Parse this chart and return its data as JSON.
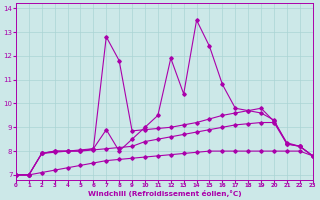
{
  "xlabel": "Windchill (Refroidissement éolien,°C)",
  "background_color": "#cce8e8",
  "line_color": "#aa00aa",
  "xlim": [
    0,
    23
  ],
  "ylim": [
    6.8,
    14.2
  ],
  "xticks": [
    0,
    1,
    2,
    3,
    4,
    5,
    6,
    7,
    8,
    9,
    10,
    11,
    12,
    13,
    14,
    15,
    16,
    17,
    18,
    19,
    20,
    21,
    22,
    23
  ],
  "yticks": [
    7,
    8,
    9,
    10,
    11,
    12,
    13,
    14
  ],
  "grid_color": "#aad4d4",
  "series": [
    {
      "x": [
        0,
        1,
        2,
        3,
        4,
        5,
        6,
        7,
        8,
        9,
        10,
        11,
        12,
        13,
        14,
        15,
        16,
        17,
        18,
        19,
        20,
        21,
        22,
        23
      ],
      "y": [
        7.0,
        7.0,
        7.1,
        7.2,
        7.3,
        7.4,
        7.5,
        7.6,
        7.65,
        7.7,
        7.75,
        7.8,
        7.85,
        7.9,
        7.95,
        8.0,
        8.0,
        8.0,
        8.0,
        8.0,
        8.0,
        8.0,
        8.0,
        7.8
      ]
    },
    {
      "x": [
        0,
        1,
        2,
        3,
        4,
        5,
        6,
        7,
        8,
        9,
        10,
        11,
        12,
        13,
        14,
        15,
        16,
        17,
        18,
        19,
        20,
        21,
        22,
        23
      ],
      "y": [
        7.0,
        7.0,
        7.9,
        7.95,
        8.0,
        8.0,
        8.05,
        8.1,
        8.15,
        8.2,
        8.4,
        8.5,
        8.6,
        8.7,
        8.8,
        8.9,
        9.0,
        9.1,
        9.15,
        9.2,
        9.2,
        8.3,
        8.2,
        7.8
      ]
    },
    {
      "x": [
        0,
        1,
        2,
        3,
        4,
        5,
        6,
        7,
        8,
        9,
        10,
        11,
        12,
        13,
        14,
        15,
        16,
        17,
        18,
        19,
        20,
        21,
        22,
        23
      ],
      "y": [
        7.0,
        7.0,
        7.9,
        8.0,
        8.0,
        8.05,
        8.1,
        12.8,
        11.8,
        8.85,
        8.9,
        8.95,
        9.0,
        9.1,
        9.2,
        9.35,
        9.5,
        9.6,
        9.7,
        9.8,
        9.25,
        8.35,
        8.2,
        7.8
      ]
    },
    {
      "x": [
        0,
        1,
        2,
        3,
        4,
        5,
        6,
        7,
        8,
        9,
        10,
        11,
        12,
        13,
        14,
        15,
        16,
        17,
        18,
        19,
        20,
        21,
        22,
        23
      ],
      "y": [
        7.0,
        7.0,
        7.9,
        8.0,
        8.0,
        8.0,
        8.1,
        8.9,
        8.0,
        8.5,
        9.0,
        9.5,
        11.9,
        10.4,
        13.5,
        12.4,
        10.8,
        9.8,
        9.7,
        9.6,
        9.3,
        8.3,
        8.2,
        7.8
      ]
    }
  ]
}
